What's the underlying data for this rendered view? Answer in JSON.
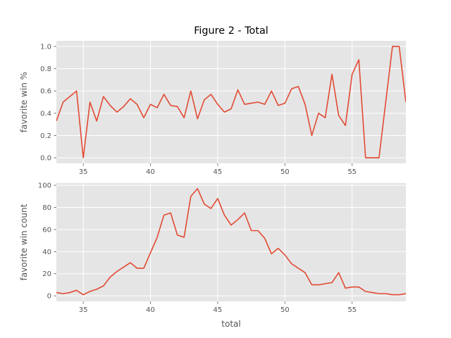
{
  "title": "Figure 2 - Total",
  "line_color": "#E24A33",
  "panel_bg": "#E5E5E5",
  "grid_color": "#FFFFFF",
  "chart_data": [
    {
      "type": "line",
      "title": "Figure 2 - Total",
      "xlabel": "total",
      "ylabel": "favorite win %",
      "xlim": [
        33,
        59
      ],
      "ylim": [
        -0.05,
        1.05
      ],
      "grid": true,
      "xticks": [
        35,
        40,
        45,
        50,
        55
      ],
      "yticks": [
        0.0,
        0.2,
        0.4,
        0.6,
        0.8,
        1.0
      ],
      "ytick_labels": [
        "0.0",
        "0.2",
        "0.4",
        "0.6",
        "0.8",
        "1.0"
      ],
      "x": [
        33,
        33.5,
        34,
        34.5,
        35,
        35.5,
        36,
        36.5,
        37,
        37.5,
        38,
        38.5,
        39,
        39.5,
        40,
        40.5,
        41,
        41.5,
        42,
        42.5,
        43,
        43.5,
        44,
        44.5,
        45,
        45.5,
        46,
        46.5,
        47,
        47.5,
        48,
        48.5,
        49,
        49.5,
        50,
        50.5,
        51,
        51.5,
        52,
        52.5,
        53,
        53.5,
        54,
        54.5,
        55,
        55.5,
        56,
        56.5,
        57,
        57.5,
        58,
        58.5,
        59
      ],
      "y": [
        0.33,
        0.5,
        0.55,
        0.6,
        0.0,
        0.5,
        0.33,
        0.55,
        0.47,
        0.41,
        0.46,
        0.53,
        0.48,
        0.36,
        0.48,
        0.45,
        0.57,
        0.47,
        0.46,
        0.36,
        0.6,
        0.35,
        0.52,
        0.57,
        0.48,
        0.41,
        0.44,
        0.61,
        0.48,
        0.49,
        0.5,
        0.48,
        0.6,
        0.47,
        0.49,
        0.62,
        0.64,
        0.48,
        0.2,
        0.4,
        0.36,
        0.75,
        0.38,
        0.29,
        0.75,
        0.88,
        0.0,
        0.0,
        0.0,
        0.5,
        1.0,
        1.0,
        0.5
      ]
    },
    {
      "type": "line",
      "xlabel": "total",
      "ylabel": "favorite win count",
      "xlim": [
        33,
        59
      ],
      "ylim": [
        -5,
        102
      ],
      "grid": true,
      "xticks": [
        35,
        40,
        45,
        50,
        55
      ],
      "yticks": [
        0,
        20,
        40,
        60,
        80,
        100
      ],
      "ytick_labels": [
        "0",
        "20",
        "40",
        "60",
        "80",
        "100"
      ],
      "x": [
        33,
        33.5,
        34,
        34.5,
        35,
        35.5,
        36,
        36.5,
        37,
        37.5,
        38,
        38.5,
        39,
        39.5,
        40,
        40.5,
        41,
        41.5,
        42,
        42.5,
        43,
        43.5,
        44,
        44.5,
        45,
        45.5,
        46,
        46.5,
        47,
        47.5,
        48,
        48.5,
        49,
        49.5,
        50,
        50.5,
        51,
        51.5,
        52,
        52.5,
        53,
        53.5,
        54,
        54.5,
        55,
        55.5,
        56,
        56.5,
        57,
        57.5,
        58,
        58.5,
        59
      ],
      "y": [
        3,
        2,
        3,
        5,
        1,
        4,
        6,
        9,
        17,
        22,
        26,
        30,
        25,
        25,
        39,
        53,
        73,
        75,
        55,
        53,
        90,
        97,
        83,
        79,
        88,
        73,
        64,
        69,
        75,
        59,
        59,
        52,
        38,
        43,
        37,
        29,
        25,
        21,
        10,
        10,
        11,
        12,
        21,
        7,
        8,
        8,
        4,
        3,
        2,
        2,
        1,
        1,
        2
      ]
    }
  ]
}
